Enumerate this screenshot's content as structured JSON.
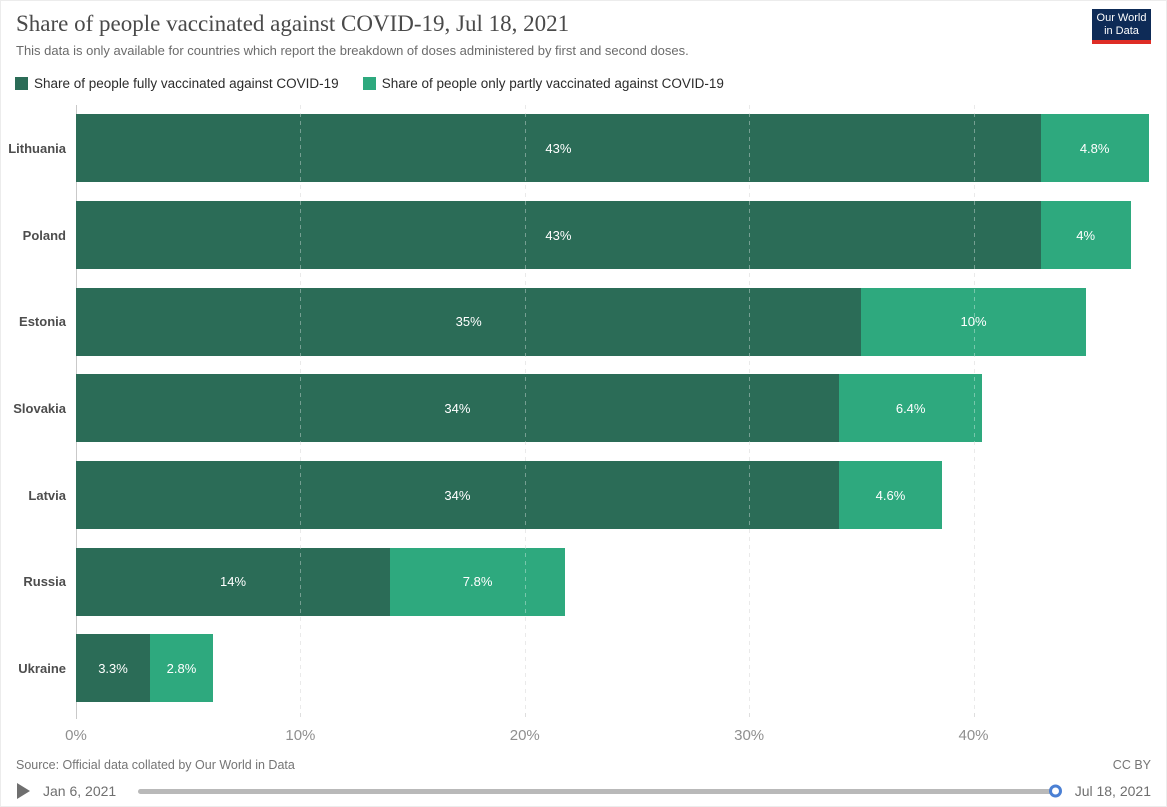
{
  "header": {
    "title": "Share of people vaccinated against COVID-19, Jul 18, 2021",
    "subtitle": "This data is only available for countries which report the breakdown of doses administered by first and second doses.",
    "logo": {
      "line1": "Our World",
      "line2": "in Data",
      "bg_color": "#0E2B57",
      "accent_color": "#DE2D26"
    }
  },
  "legend": {
    "items": [
      {
        "label": "Share of people fully vaccinated against COVID-19",
        "color": "#2B6C57"
      },
      {
        "label": "Share of people only partly vaccinated against COVID-19",
        "color": "#2EA97E"
      }
    ]
  },
  "chart_data": {
    "type": "bar",
    "orientation": "horizontal",
    "stacked": true,
    "title": "Share of people vaccinated against COVID-19, Jul 18, 2021",
    "categories": [
      "Lithuania",
      "Poland",
      "Estonia",
      "Slovakia",
      "Latvia",
      "Russia",
      "Ukraine"
    ],
    "series": [
      {
        "name": "Share of people fully vaccinated against COVID-19",
        "color": "#2B6C57",
        "values": [
          43,
          43,
          35,
          34,
          34,
          14,
          3.3
        ],
        "labels": [
          "43%",
          "43%",
          "35%",
          "34%",
          "34%",
          "14%",
          "3.3%"
        ]
      },
      {
        "name": "Share of people only partly vaccinated against COVID-19",
        "color": "#2EA97E",
        "values": [
          4.8,
          4,
          10,
          6.4,
          4.6,
          7.8,
          2.8
        ],
        "labels": [
          "4.8%",
          "4%",
          "10%",
          "6.4%",
          "4.6%",
          "7.8%",
          "2.8%"
        ]
      }
    ],
    "xlim": [
      0,
      48
    ],
    "x_ticks": [
      {
        "value": 0,
        "label": "0%"
      },
      {
        "value": 10,
        "label": "10%"
      },
      {
        "value": 20,
        "label": "20%"
      },
      {
        "value": 30,
        "label": "30%"
      },
      {
        "value": 40,
        "label": "40%"
      }
    ],
    "grid": "dashed-vertical",
    "legend_position": "top"
  },
  "footer": {
    "source": "Source: Official data collated by Our World in Data",
    "license": "CC BY"
  },
  "timeline": {
    "start_label": "Jan 6, 2021",
    "end_label": "Jul 18, 2021",
    "handle_color": "#4b80d4",
    "track_color": "#b9b9b9"
  }
}
